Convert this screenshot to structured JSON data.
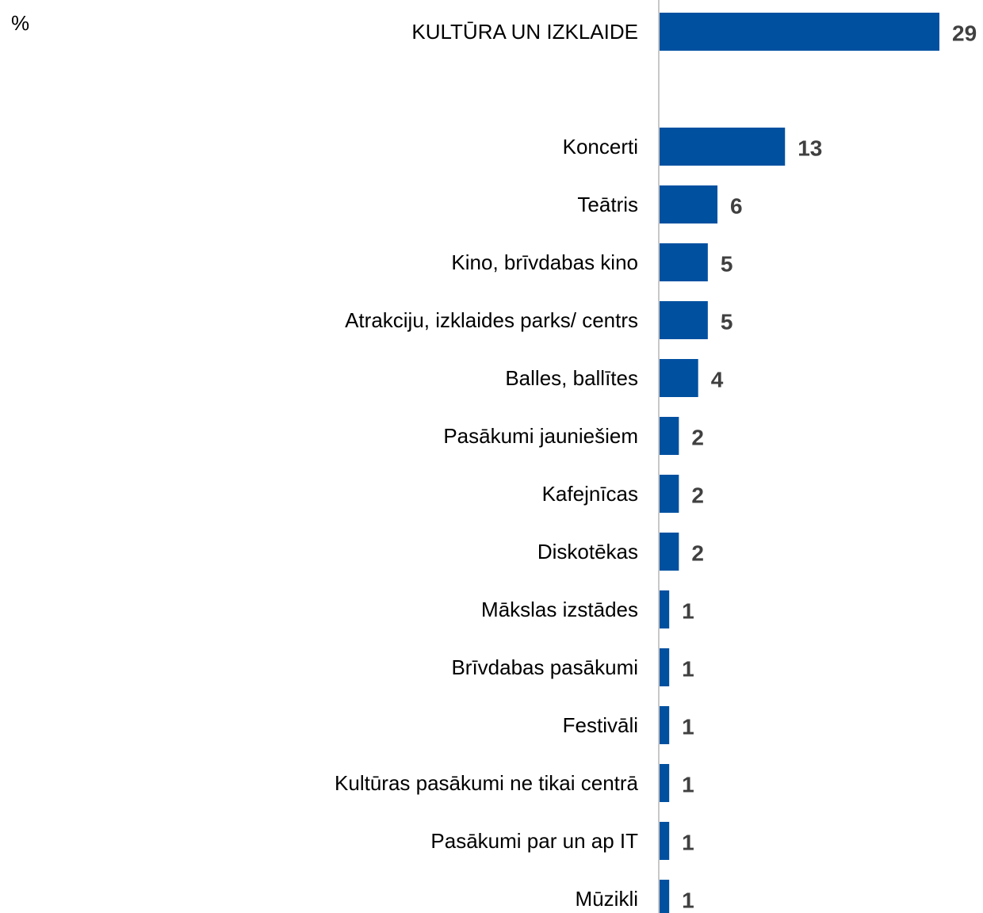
{
  "unit_label": "%",
  "chart_data": {
    "type": "bar",
    "orientation": "horizontal",
    "title": "",
    "xlabel": "",
    "ylabel": "",
    "unit": "%",
    "bar_color": "#0050a0",
    "categories": [
      "KULTŪRA UN IZKLAIDE",
      "Koncerti",
      "Teātris",
      "Kino, brīvdabas kino",
      "Atrakciju, izklaides parks/ centrs",
      "Balles, ballītes",
      "Pasākumi jauniešiem",
      "Kafejnīcas",
      "Diskotēkas",
      "Mākslas izstādes",
      "Brīvdabas pasākumi",
      "Festivāli",
      "Kultūras pasākumi ne tikai centrā",
      "Pasākumi par un ap IT",
      "Mūzikli"
    ],
    "values": [
      29,
      13,
      6,
      5,
      5,
      4,
      2,
      2,
      2,
      1,
      1,
      1,
      1,
      1,
      1
    ],
    "data_labels": [
      "29",
      "13",
      "6",
      "5",
      "5",
      "4",
      "2",
      "2",
      "2",
      "1",
      "1",
      "1",
      "1",
      "1",
      "1"
    ],
    "xlim": [
      0,
      30
    ],
    "grid": false,
    "legend": "none"
  }
}
